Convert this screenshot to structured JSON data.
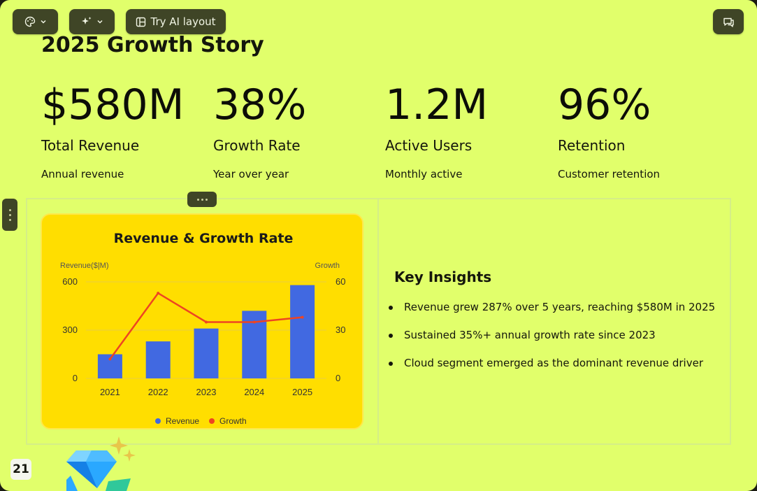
{
  "toolbar": {
    "theme_icon": "palette-icon",
    "magic_icon": "sparkle-icon",
    "ai_layout_label": "Try AI layout",
    "chat_icon": "comment-icon"
  },
  "slide": {
    "title": "2025 Growth Story",
    "stats": [
      {
        "value": "$580M",
        "label": "Total Revenue",
        "sub": "Annual revenue"
      },
      {
        "value": "38%",
        "label": "Growth Rate",
        "sub": "Year over year"
      },
      {
        "value": "1.2M",
        "label": "Active Users",
        "sub": "Monthly active"
      },
      {
        "value": "96%",
        "label": "Retention",
        "sub": "Customer retention"
      }
    ],
    "insights": {
      "title": "Key Insights",
      "items": [
        "Revenue grew 287% over 5 years, reaching $580M in 2025",
        "Sustained 35%+ annual growth rate since 2023",
        "Cloud segment emerged as the dominant revenue driver"
      ]
    },
    "page_number": "21"
  },
  "colors": {
    "slide_bg": "#e1ff6b",
    "chart_card_bg": "#ffde00",
    "bar": "#4169e1",
    "line": "#ee4422",
    "toolbar_bg": "#3f4526"
  },
  "chart_data": {
    "type": "bar",
    "title": "Revenue & Growth Rate",
    "categories": [
      "2021",
      "2022",
      "2023",
      "2024",
      "2025"
    ],
    "series": [
      {
        "name": "Revenue",
        "type": "bar",
        "axis": "left",
        "values": [
          150,
          230,
          310,
          420,
          580
        ]
      },
      {
        "name": "Growth",
        "type": "line",
        "axis": "right",
        "values": [
          12,
          53,
          35,
          35,
          38
        ]
      }
    ],
    "ylabel": "Revenue($|M)",
    "y2label": "Growth",
    "ylim": [
      0,
      600
    ],
    "y2lim": [
      0,
      60
    ],
    "yticks": [
      0,
      300,
      600
    ],
    "y2ticks": [
      0,
      30,
      60
    ],
    "grid": true,
    "legend": "bottom"
  }
}
